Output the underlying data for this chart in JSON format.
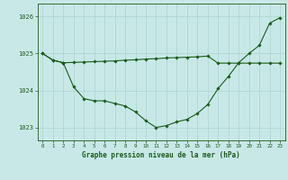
{
  "background_color": "#c8e8e8",
  "grid_color": "#b0d8d0",
  "line_color": "#1a5c1a",
  "marker_color": "#1a5c1a",
  "title": "Graphe pression niveau de la mer (hPa)",
  "xlim": [
    -0.5,
    23.5
  ],
  "ylim": [
    1022.65,
    1026.35
  ],
  "yticks": [
    1023,
    1024,
    1025,
    1026
  ],
  "xticks": [
    0,
    1,
    2,
    3,
    4,
    5,
    6,
    7,
    8,
    9,
    10,
    11,
    12,
    13,
    14,
    15,
    16,
    17,
    18,
    19,
    20,
    21,
    22,
    23
  ],
  "series1_x": [
    0,
    1,
    2
  ],
  "series1_y": [
    1025.0,
    1024.82,
    1024.75
  ],
  "series2_x": [
    0,
    1,
    2,
    3,
    4,
    5,
    6,
    7,
    8,
    9,
    10,
    11,
    12,
    13,
    14,
    15,
    16,
    17,
    18,
    19,
    20,
    21,
    22,
    23
  ],
  "series2_y": [
    1025.0,
    1024.82,
    1024.75,
    1024.1,
    1023.78,
    1023.72,
    1023.72,
    1023.65,
    1023.58,
    1023.42,
    1023.18,
    1023.0,
    1023.05,
    1023.15,
    1023.22,
    1023.38,
    1023.62,
    1024.05,
    1024.38,
    1024.75,
    1025.0,
    1025.22,
    1025.82,
    1025.97
  ],
  "series3_x": [
    2,
    3,
    4,
    5,
    6,
    7,
    8,
    9,
    10,
    11,
    12,
    13,
    14,
    15,
    16,
    17,
    18,
    19,
    20,
    21,
    22,
    23
  ],
  "series3_y": [
    1024.75,
    1024.76,
    1024.77,
    1024.78,
    1024.79,
    1024.8,
    1024.82,
    1024.83,
    1024.85,
    1024.86,
    1024.88,
    1024.89,
    1024.9,
    1024.91,
    1024.93,
    1024.74,
    1024.74,
    1024.74,
    1024.74,
    1024.74,
    1024.74,
    1024.74
  ]
}
